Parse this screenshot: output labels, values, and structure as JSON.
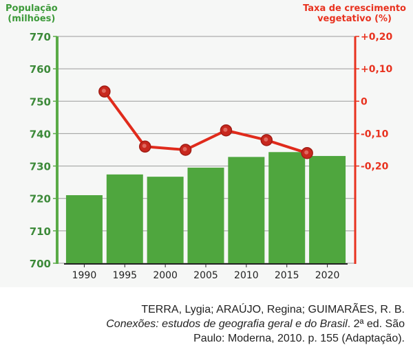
{
  "chart_data": {
    "type": "bar+line",
    "left_axis_title_line1": "População",
    "left_axis_title_line2": "(milhões)",
    "right_axis_title_line1": "Taxa de crescimento",
    "right_axis_title_line2": "vegetativo (%)",
    "categories": [
      "1990",
      "1995",
      "2000",
      "2005",
      "2010",
      "2015",
      "2020"
    ],
    "left_ylim": [
      700,
      770
    ],
    "left_ticks": [
      "700",
      "710",
      "720",
      "730",
      "740",
      "750",
      "760",
      "770"
    ],
    "right_ylim": [
      -0.5,
      0.2
    ],
    "right_ticks": [
      {
        "value": 0.2,
        "label": "+0,20"
      },
      {
        "value": 0.1,
        "label": "+0,10"
      },
      {
        "value": 0,
        "label": "0"
      },
      {
        "value": -0.1,
        "label": "-0,10"
      },
      {
        "value": -0.2,
        "label": "-0,20"
      }
    ],
    "bar_series": {
      "name": "População (milhões)",
      "values": [
        721,
        727.4,
        726.7,
        729.5,
        732.8,
        734.3,
        733.1
      ],
      "color": "#4fa63e"
    },
    "line_series": {
      "name": "Taxa de crescimento vegetativo (%)",
      "x_positions": [
        1992.5,
        1997.5,
        2002.5,
        2007.5,
        2012.5,
        2017.5
      ],
      "values": [
        0.03,
        -0.14,
        -0.15,
        -0.09,
        -0.12,
        -0.16
      ],
      "color": "#e02b1c"
    },
    "grid": true,
    "left_axis_color": "#5aab47",
    "right_axis_color": "#e8321f"
  },
  "source": {
    "line1": "TERRA, Lygia; ARAÚJO, Regina; GUIMARÃES, R. B.",
    "line2_italic": "Conexões: estudos de geografia geral e do Brasil",
    "line2_rest": ". 2ª ed. São",
    "line3": "Paulo: Moderna, 2010. p. 155 (Adaptação)."
  }
}
